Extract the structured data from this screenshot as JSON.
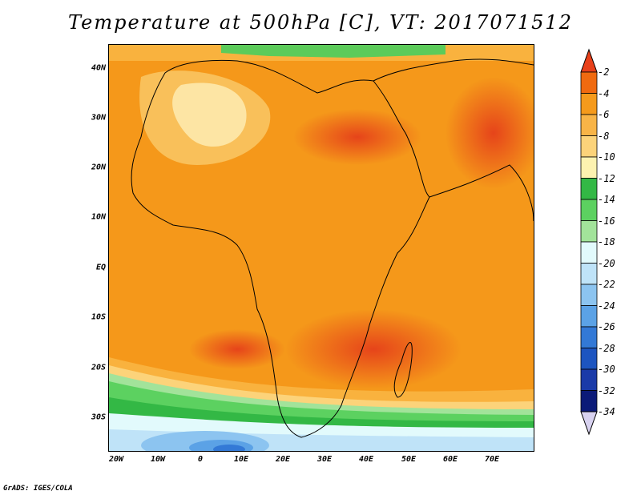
{
  "title": "Temperature at 500hPa [C], VT: 2017071512",
  "credit": "GrADS: IGES/COLA",
  "map": {
    "lat_labels": [
      "40N",
      "30N",
      "20N",
      "10N",
      "EQ",
      "10S",
      "20S",
      "30S"
    ],
    "lon_labels": [
      "20W",
      "10W",
      "0",
      "10E",
      "20E",
      "30E",
      "40E",
      "50E",
      "60E",
      "70E"
    ]
  },
  "colorbar": {
    "labels": [
      "-2",
      "-4",
      "-6",
      "-8",
      "-10",
      "-12",
      "-14",
      "-16",
      "-18",
      "-20",
      "-22",
      "-24",
      "-26",
      "-28",
      "-30",
      "-32",
      "-34"
    ],
    "colors": [
      "#e8401a",
      "#f06a10",
      "#f59a1c",
      "#f8b447",
      "#fcd37a",
      "#fdf2b0",
      "#33b845",
      "#5cd160",
      "#a2e39a",
      "#e2fafc",
      "#bfe3f8",
      "#8cc4f0",
      "#5ba2e6",
      "#3379d6",
      "#1d55c0",
      "#1a3aa8",
      "#0b1a78",
      "#d8d2f0"
    ]
  }
}
